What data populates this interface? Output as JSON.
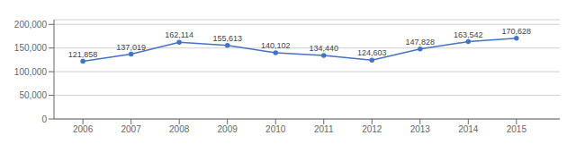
{
  "chart_data": {
    "type": "line",
    "x": [
      2006,
      2007,
      2008,
      2009,
      2010,
      2011,
      2012,
      2013,
      2014,
      2015
    ],
    "values": [
      121858,
      137019,
      162114,
      155613,
      140102,
      134440,
      124603,
      147828,
      163542,
      170628
    ],
    "value_labels": [
      "121,858",
      "137,019",
      "162,114",
      "155,613",
      "140,102",
      "134,440",
      "124,603",
      "147,828",
      "163,542",
      "170,628"
    ],
    "data_labels": true,
    "color": "#4472C4",
    "marker": "circle",
    "xlim": [
      2005.4,
      2015.9
    ],
    "xticks": [
      2006,
      2007,
      2008,
      2009,
      2010,
      2011,
      2012,
      2013,
      2014,
      2015
    ],
    "ylim": [
      0,
      210000
    ],
    "yticks": [
      0,
      {
        "value": 50000,
        "label": "50,000"
      },
      {
        "value": 100000,
        "label": "100,000"
      },
      {
        "value": 150000,
        "label": "150,000"
      },
      {
        "value": 200000,
        "label": "200,000"
      }
    ],
    "grid": true
  }
}
